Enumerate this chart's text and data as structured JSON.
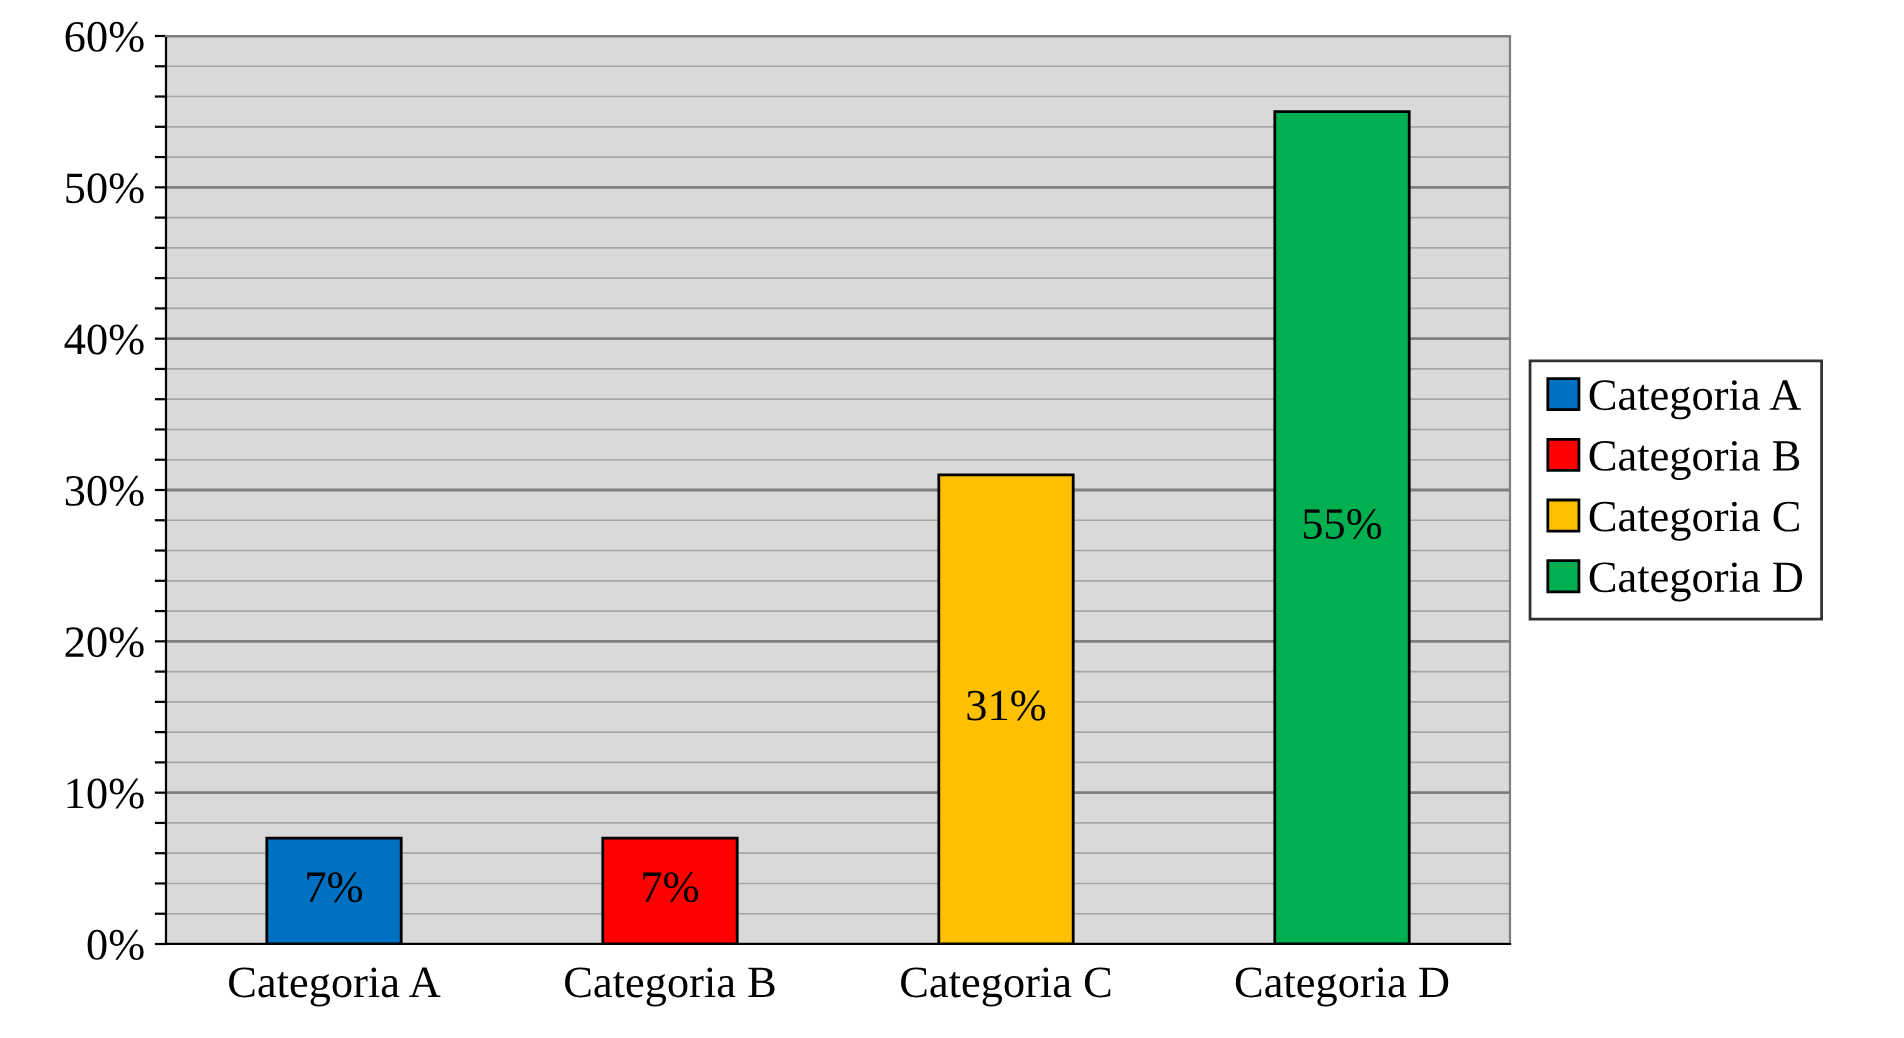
{
  "chart_data": {
    "type": "bar",
    "categories": [
      "Categoria A",
      "Categoria B",
      "Categoria C",
      "Categoria D"
    ],
    "series": [
      {
        "name": "Categoria A",
        "color": "#0070c0",
        "values": [
          7,
          null,
          null,
          null
        ],
        "value_labels": [
          "7%",
          null,
          null,
          null
        ]
      },
      {
        "name": "Categoria B",
        "color": "#ff0000",
        "values": [
          null,
          7,
          null,
          null
        ],
        "value_labels": [
          null,
          "7%",
          null,
          null
        ]
      },
      {
        "name": "Categoria C",
        "color": "#ffc000",
        "values": [
          null,
          null,
          31,
          null
        ],
        "value_labels": [
          null,
          null,
          "31%",
          null
        ]
      },
      {
        "name": "Categoria D",
        "color": "#00b050",
        "values": [
          null,
          null,
          null,
          55
        ],
        "value_labels": [
          null,
          null,
          null,
          "55%"
        ]
      }
    ],
    "ylim": [
      0,
      60
    ],
    "yticks": [
      {
        "value": 0,
        "label": "0%"
      },
      {
        "value": 2,
        "label": null
      },
      {
        "value": 4,
        "label": null
      },
      {
        "value": 6,
        "label": null
      },
      {
        "value": 8,
        "label": null
      },
      {
        "value": 10,
        "label": "10%"
      },
      {
        "value": 12,
        "label": null
      },
      {
        "value": 14,
        "label": null
      },
      {
        "value": 16,
        "label": null
      },
      {
        "value": 18,
        "label": null
      },
      {
        "value": 20,
        "label": "20%"
      },
      {
        "value": 22,
        "label": null
      },
      {
        "value": 24,
        "label": null
      },
      {
        "value": 26,
        "label": null
      },
      {
        "value": 28,
        "label": null
      },
      {
        "value": 30,
        "label": "30%"
      },
      {
        "value": 32,
        "label": null
      },
      {
        "value": 34,
        "label": null
      },
      {
        "value": 36,
        "label": null
      },
      {
        "value": 38,
        "label": null
      },
      {
        "value": 40,
        "label": "40%"
      },
      {
        "value": 42,
        "label": null
      },
      {
        "value": 44,
        "label": null
      },
      {
        "value": 46,
        "label": null
      },
      {
        "value": 48,
        "label": null
      },
      {
        "value": 50,
        "label": "50%"
      },
      {
        "value": 52,
        "label": null
      },
      {
        "value": 54,
        "label": null
      },
      {
        "value": 56,
        "label": null
      },
      {
        "value": 58,
        "label": null
      },
      {
        "value": 60,
        "label": "60%"
      }
    ],
    "grid": "y",
    "legend": "right"
  }
}
